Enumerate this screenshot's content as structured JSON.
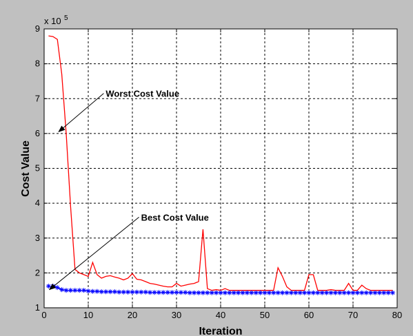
{
  "chart_data": {
    "type": "line",
    "title": "",
    "xlabel": "Iteration",
    "ylabel": "Cost Value",
    "y_multiplier_label": "x 10",
    "y_multiplier_exponent": "5",
    "xlim": [
      0,
      80
    ],
    "ylim": [
      1,
      9
    ],
    "x_ticks": [
      0,
      10,
      20,
      30,
      40,
      50,
      60,
      70,
      80
    ],
    "y_ticks": [
      1,
      2,
      3,
      4,
      5,
      6,
      7,
      8,
      9
    ],
    "grid": true,
    "series": [
      {
        "color": "#ff0000",
        "marker": "none",
        "x": [
          1,
          2,
          3,
          4,
          5,
          6,
          7,
          8,
          9,
          10,
          11,
          12,
          13,
          14,
          15,
          16,
          17,
          18,
          19,
          20,
          21,
          22,
          23,
          24,
          25,
          26,
          27,
          28,
          29,
          30,
          31,
          32,
          33,
          34,
          35,
          36,
          37,
          38,
          39,
          40,
          41,
          42,
          43,
          44,
          45,
          46,
          47,
          48,
          49,
          50,
          51,
          52,
          53,
          54,
          55,
          56,
          57,
          58,
          59,
          60,
          61,
          62,
          63,
          64,
          65,
          66,
          67,
          68,
          69,
          70,
          71,
          72,
          73,
          74,
          75,
          76,
          77,
          78,
          79
        ],
        "y": [
          8.8,
          8.78,
          8.7,
          7.7,
          6.0,
          3.9,
          2.1,
          2.0,
          1.95,
          1.9,
          2.3,
          1.95,
          1.85,
          1.9,
          1.92,
          1.88,
          1.85,
          1.8,
          1.85,
          1.98,
          1.82,
          1.8,
          1.75,
          1.7,
          1.68,
          1.65,
          1.62,
          1.6,
          1.6,
          1.7,
          1.62,
          1.65,
          1.68,
          1.7,
          1.75,
          3.25,
          1.55,
          1.5,
          1.52,
          1.5,
          1.55,
          1.5,
          1.5,
          1.5,
          1.5,
          1.5,
          1.5,
          1.5,
          1.5,
          1.5,
          1.5,
          1.5,
          2.15,
          1.9,
          1.6,
          1.5,
          1.5,
          1.5,
          1.5,
          1.95,
          1.95,
          1.5,
          1.5,
          1.5,
          1.52,
          1.5,
          1.5,
          1.5,
          1.7,
          1.5,
          1.5,
          1.65,
          1.55,
          1.5,
          1.5,
          1.5,
          1.5,
          1.5,
          1.5
        ]
      },
      {
        "color": "#0000ff",
        "marker": "asterisk",
        "x": [
          1,
          2,
          3,
          4,
          5,
          6,
          7,
          8,
          9,
          10,
          11,
          12,
          13,
          14,
          15,
          16,
          17,
          18,
          19,
          20,
          21,
          22,
          23,
          24,
          25,
          26,
          27,
          28,
          29,
          30,
          31,
          32,
          33,
          34,
          35,
          36,
          37,
          38,
          39,
          40,
          41,
          42,
          43,
          44,
          45,
          46,
          47,
          48,
          49,
          50,
          51,
          52,
          53,
          54,
          55,
          56,
          57,
          58,
          59,
          60,
          61,
          62,
          63,
          64,
          65,
          66,
          67,
          68,
          69,
          70,
          71,
          72,
          73,
          74,
          75,
          76,
          77,
          78,
          79
        ],
        "y": [
          1.62,
          1.62,
          1.58,
          1.52,
          1.5,
          1.5,
          1.5,
          1.5,
          1.5,
          1.48,
          1.47,
          1.47,
          1.46,
          1.46,
          1.46,
          1.46,
          1.45,
          1.45,
          1.45,
          1.45,
          1.45,
          1.45,
          1.45,
          1.44,
          1.44,
          1.44,
          1.44,
          1.44,
          1.44,
          1.44,
          1.44,
          1.44,
          1.43,
          1.43,
          1.43,
          1.43,
          1.43,
          1.43,
          1.43,
          1.43,
          1.43,
          1.43,
          1.43,
          1.43,
          1.43,
          1.43,
          1.43,
          1.43,
          1.43,
          1.43,
          1.43,
          1.43,
          1.43,
          1.43,
          1.43,
          1.43,
          1.43,
          1.43,
          1.43,
          1.43,
          1.43,
          1.43,
          1.43,
          1.43,
          1.43,
          1.43,
          1.43,
          1.43,
          1.43,
          1.43,
          1.43,
          1.43,
          1.43,
          1.43,
          1.43,
          1.43,
          1.43,
          1.43,
          1.43
        ]
      }
    ],
    "annotations": [
      {
        "text": "Worst Cost Value",
        "arrow_from": [
          13.5,
          7.15
        ],
        "arrow_to": [
          3.3,
          6.05
        ]
      },
      {
        "text": "Best Cost Value",
        "arrow_from": [
          21.5,
          3.6
        ],
        "arrow_to": [
          1.2,
          1.52
        ]
      }
    ]
  }
}
